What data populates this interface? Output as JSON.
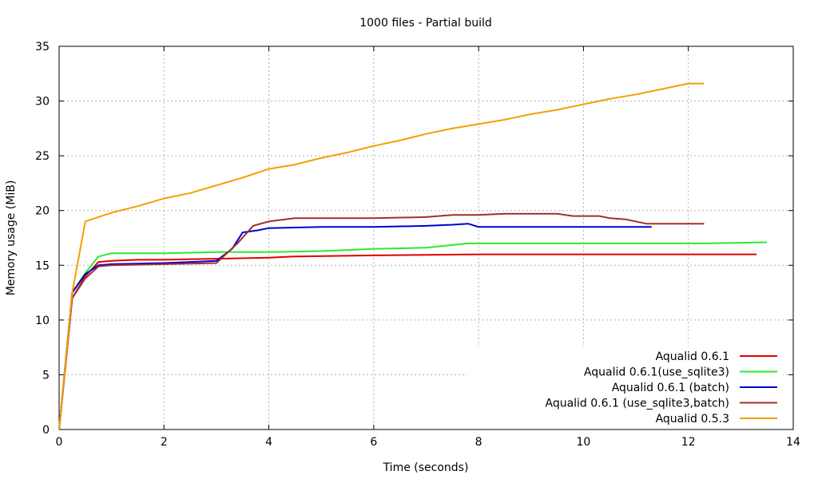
{
  "chart_data": {
    "type": "line",
    "title": "1000 files - Partial build",
    "xlabel": "Time (seconds)",
    "ylabel": "Memory usage (MiB)",
    "xlim": [
      0,
      14
    ],
    "ylim": [
      0,
      35
    ],
    "xticks": [
      0,
      2,
      4,
      6,
      8,
      10,
      12,
      14
    ],
    "yticks": [
      0,
      5,
      10,
      15,
      20,
      25,
      30,
      35
    ],
    "grid": true,
    "legend_position": "bottom-right",
    "series": [
      {
        "name": "Aqualid 0.6.1",
        "color": "#e00000",
        "points": [
          [
            0,
            0
          ],
          [
            0.25,
            12
          ],
          [
            0.5,
            14
          ],
          [
            0.75,
            15.3
          ],
          [
            1,
            15.4
          ],
          [
            1.5,
            15.5
          ],
          [
            2,
            15.5
          ],
          [
            3,
            15.6
          ],
          [
            4,
            15.7
          ],
          [
            4.5,
            15.8
          ],
          [
            6,
            15.9
          ],
          [
            8,
            16
          ],
          [
            10,
            16
          ],
          [
            12,
            16
          ],
          [
            13.3,
            16
          ]
        ]
      },
      {
        "name": "Aqualid 0.6.1(use_sqlite3)",
        "color": "#2ee82e",
        "points": [
          [
            0,
            0
          ],
          [
            0.25,
            12.5
          ],
          [
            0.5,
            14.3
          ],
          [
            0.75,
            15.8
          ],
          [
            1,
            16.1
          ],
          [
            2,
            16.1
          ],
          [
            3,
            16.2
          ],
          [
            4,
            16.2
          ],
          [
            5,
            16.3
          ],
          [
            6,
            16.5
          ],
          [
            7,
            16.6
          ],
          [
            7.8,
            17
          ],
          [
            10,
            17
          ],
          [
            12,
            17
          ],
          [
            12.3,
            17
          ],
          [
            13.5,
            17.1
          ]
        ]
      },
      {
        "name": "Aqualid 0.6.1 (batch)",
        "color": "#0000d0",
        "points": [
          [
            0,
            0
          ],
          [
            0.25,
            12.5
          ],
          [
            0.5,
            14.2
          ],
          [
            0.75,
            15
          ],
          [
            1,
            15.1
          ],
          [
            2,
            15.2
          ],
          [
            3,
            15.4
          ],
          [
            3.3,
            16.5
          ],
          [
            3.5,
            18
          ],
          [
            3.8,
            18.2
          ],
          [
            4,
            18.4
          ],
          [
            5,
            18.5
          ],
          [
            6,
            18.5
          ],
          [
            7,
            18.6
          ],
          [
            7.5,
            18.7
          ],
          [
            7.8,
            18.8
          ],
          [
            8,
            18.5
          ],
          [
            9,
            18.5
          ],
          [
            10,
            18.5
          ],
          [
            11.3,
            18.5
          ]
        ]
      },
      {
        "name": "Aqualid 0.6.1 (use_sqlite3,batch)",
        "color": "#a03030",
        "points": [
          [
            0,
            0
          ],
          [
            0.25,
            12
          ],
          [
            0.5,
            13.8
          ],
          [
            0.75,
            14.9
          ],
          [
            1,
            15
          ],
          [
            2,
            15.1
          ],
          [
            3,
            15.2
          ],
          [
            3.4,
            17
          ],
          [
            3.7,
            18.6
          ],
          [
            4,
            19
          ],
          [
            4.5,
            19.3
          ],
          [
            6,
            19.3
          ],
          [
            7,
            19.4
          ],
          [
            7.5,
            19.6
          ],
          [
            8,
            19.6
          ],
          [
            8.5,
            19.7
          ],
          [
            9.5,
            19.7
          ],
          [
            9.8,
            19.5
          ],
          [
            10.3,
            19.5
          ],
          [
            10.5,
            19.3
          ],
          [
            10.8,
            19.2
          ],
          [
            11.2,
            18.8
          ],
          [
            12.3,
            18.8
          ]
        ]
      },
      {
        "name": "Aqualid 0.5.3",
        "color": "#f2a000",
        "points": [
          [
            0,
            0
          ],
          [
            0.25,
            12.5
          ],
          [
            0.5,
            19
          ],
          [
            1,
            19.8
          ],
          [
            1.5,
            20.4
          ],
          [
            2,
            21.1
          ],
          [
            2.5,
            21.6
          ],
          [
            3,
            22.3
          ],
          [
            3.5,
            23
          ],
          [
            4,
            23.8
          ],
          [
            4.5,
            24.2
          ],
          [
            5,
            24.8
          ],
          [
            5.5,
            25.3
          ],
          [
            6,
            25.9
          ],
          [
            6.5,
            26.4
          ],
          [
            7,
            27
          ],
          [
            7.5,
            27.5
          ],
          [
            8,
            27.9
          ],
          [
            8.5,
            28.3
          ],
          [
            9,
            28.8
          ],
          [
            9.5,
            29.2
          ],
          [
            10,
            29.7
          ],
          [
            10.5,
            30.2
          ],
          [
            11,
            30.6
          ],
          [
            11.5,
            31.1
          ],
          [
            12,
            31.6
          ],
          [
            12.3,
            31.6
          ]
        ]
      }
    ]
  }
}
